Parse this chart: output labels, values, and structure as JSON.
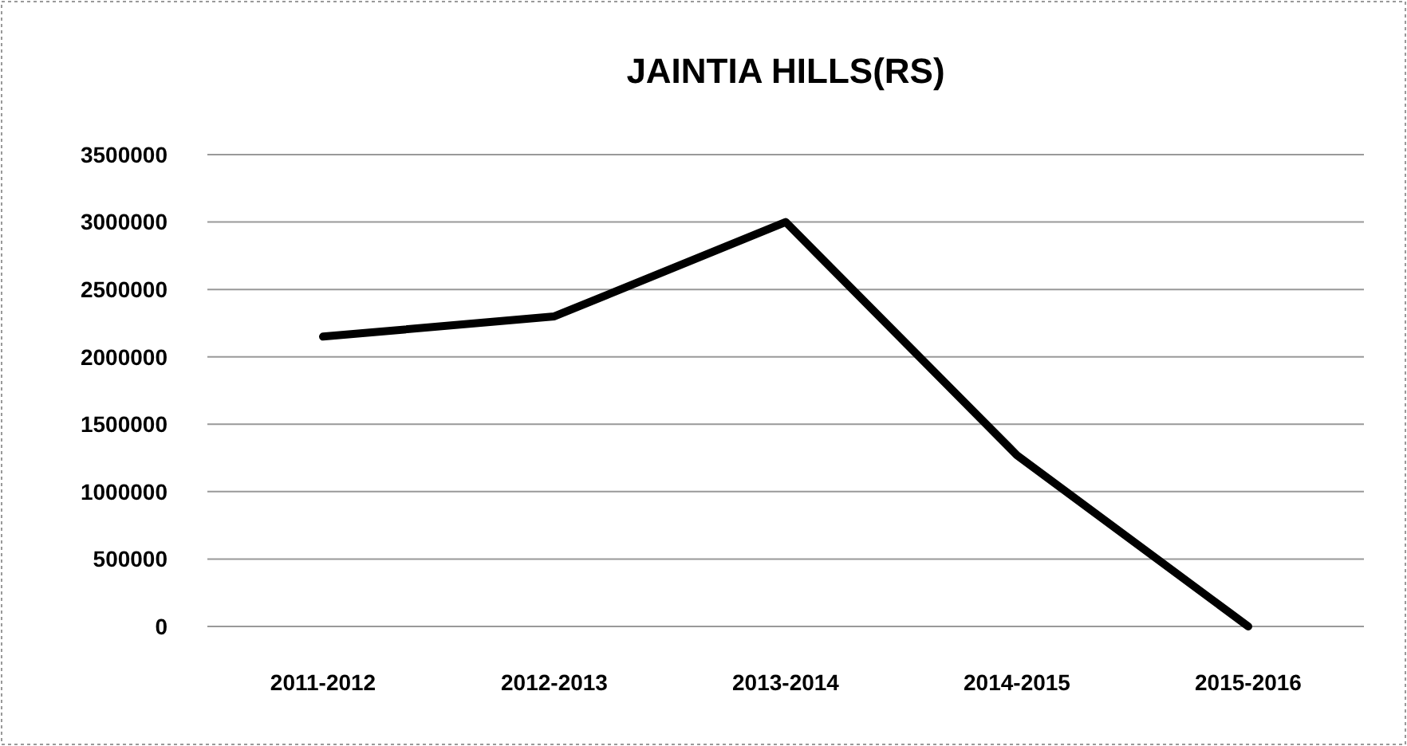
{
  "chart_data": {
    "type": "line",
    "title": "JAINTIA HILLS(RS)",
    "categories": [
      "2011-2012",
      "2012-2013",
      "2013-2014",
      "2014-2015",
      "2015-2016"
    ],
    "series": [
      {
        "color": "#000000",
        "values": [
          2150000,
          2300000,
          3000000,
          1270000,
          0
        ]
      }
    ],
    "ylim": [
      0,
      3500000
    ],
    "yticks": [
      0,
      500000,
      1000000,
      1500000,
      2000000,
      2500000,
      3000000,
      3500000
    ],
    "grid": "y",
    "marker": "none",
    "line_style": "solid"
  }
}
